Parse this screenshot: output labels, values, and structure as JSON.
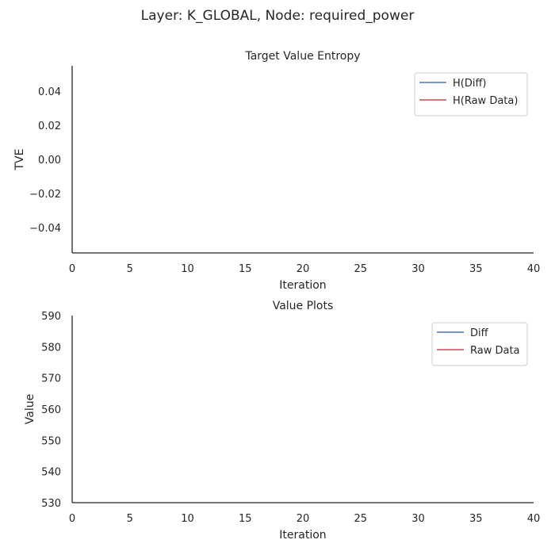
{
  "suptitle": "Layer: K_GLOBAL, Node: required_power",
  "colors": {
    "series_blue": "#4c72b0",
    "series_red": "#c44e52",
    "axis": "#262626",
    "legend_border": "#cccccc"
  },
  "chart_data": [
    {
      "type": "line",
      "title": "Target Value Entropy",
      "xlabel": "Iteration",
      "ylabel": "TVE",
      "xlim": [
        0,
        40
      ],
      "ylim": [
        -0.055,
        0.055
      ],
      "xticks": [
        0,
        5,
        10,
        15,
        20,
        25,
        30,
        35,
        40
      ],
      "yticks": [
        -0.04,
        -0.02,
        0.0,
        0.02,
        0.04
      ],
      "ytick_labels": [
        "−0.04",
        "−0.02",
        "0.00",
        "0.02",
        "0.04"
      ],
      "grid": false,
      "legend_position": "top-right",
      "series": [
        {
          "name": "H(Diff)",
          "color": "#4c72b0",
          "x": [],
          "y": []
        },
        {
          "name": "H(Raw Data)",
          "color": "#c44e52",
          "x": [],
          "y": []
        }
      ]
    },
    {
      "type": "line",
      "title": "Value Plots",
      "xlabel": "Iteration",
      "ylabel": "Value",
      "xlim": [
        0,
        40
      ],
      "ylim": [
        530,
        590
      ],
      "xticks": [
        0,
        5,
        10,
        15,
        20,
        25,
        30,
        35,
        40
      ],
      "yticks": [
        530,
        540,
        550,
        560,
        570,
        580,
        590
      ],
      "ytick_labels": [
        "530",
        "540",
        "550",
        "560",
        "570",
        "580",
        "590"
      ],
      "grid": false,
      "legend_position": "top-right",
      "series": [
        {
          "name": "Diff",
          "color": "#4c72b0",
          "x": [],
          "y": []
        },
        {
          "name": "Raw Data",
          "color": "#c44e52",
          "x": [],
          "y": []
        }
      ]
    }
  ]
}
